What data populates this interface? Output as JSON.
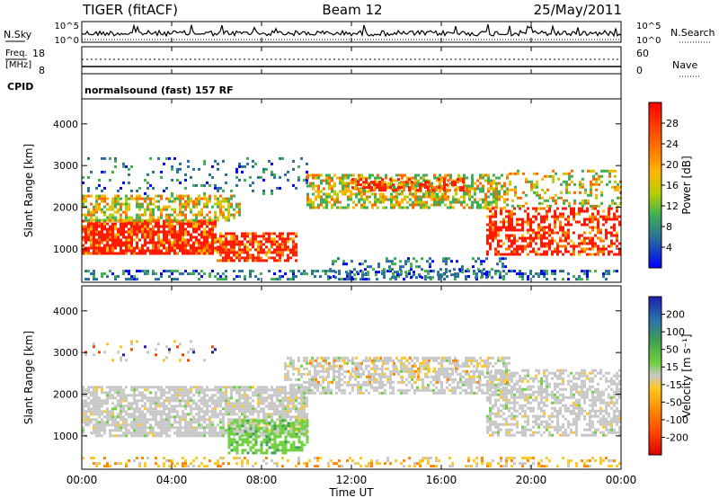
{
  "header": {
    "radar": "TIGER (fitACF)",
    "beam": "Beam 12",
    "date": "25/May/2011"
  },
  "top_panels": {
    "nsky_label": "N.Sky",
    "nsky_ticks": [
      "10^5",
      "10^0"
    ],
    "nsearch_label": "N.Search",
    "nsearch_ticks": [
      "10^5",
      "10^0"
    ],
    "freq_label_1": "Freq.",
    "freq_label_2": "[MHz]",
    "freq_ticks": [
      "18",
      "8"
    ],
    "nave_label": "Nave",
    "nave_ticks": [
      "60",
      "0"
    ],
    "cpid_label": "CPID",
    "cpid_text": "normalsound (fast) 157 RF"
  },
  "chart_data": [
    {
      "type": "heatmap",
      "quantity": "power",
      "ylabel": "Slant Range [km]",
      "xlabel": "Time UT",
      "ylim": [
        200,
        4600
      ],
      "yticks": [
        "4000",
        "3000",
        "2000",
        "1000"
      ],
      "x_range_hours": [
        0,
        24
      ],
      "xticks": [
        "00:00",
        "04:00",
        "08:00",
        "12:00",
        "16:00",
        "20:00",
        "00:00"
      ],
      "colorbar": {
        "label": "Power [dB]",
        "ticks": [
          "28",
          "24",
          "20",
          "16",
          "12",
          "8",
          "4"
        ],
        "colors": [
          "#ff0000",
          "#ff3300",
          "#ff7a00",
          "#ffaa00",
          "#ffdc00",
          "#a0d000",
          "#3fae55",
          "#2a8a7a",
          "#1f4aa8",
          "#0000ff"
        ]
      }
    },
    {
      "type": "heatmap",
      "quantity": "velocity",
      "ylabel": "Slant Range [km]",
      "xlabel": "Time UT",
      "ylim": [
        200,
        4600
      ],
      "yticks": [
        "4000",
        "3000",
        "2000",
        "1000"
      ],
      "x_range_hours": [
        0,
        24
      ],
      "xticks": [
        "00:00",
        "04:00",
        "08:00",
        "12:00",
        "16:00",
        "20:00",
        "00:00"
      ],
      "colorbar": {
        "label": "Velocity [m s⁻¹]",
        "ticks": [
          "200",
          "100",
          "50",
          "15",
          "-15",
          "-50",
          "-100",
          "-200"
        ],
        "colors": [
          "#1f1fa8",
          "#2a6fb0",
          "#3fa050",
          "#70d040",
          "#c8c8c8",
          "#ffc820",
          "#ff8800",
          "#ff4400",
          "#e00000"
        ]
      }
    }
  ],
  "colors": {
    "power_low": "#0000ff",
    "power_high": "#ff0000",
    "velocity_ground": "#c8c8c8",
    "velocity_positive": "#70d040"
  }
}
